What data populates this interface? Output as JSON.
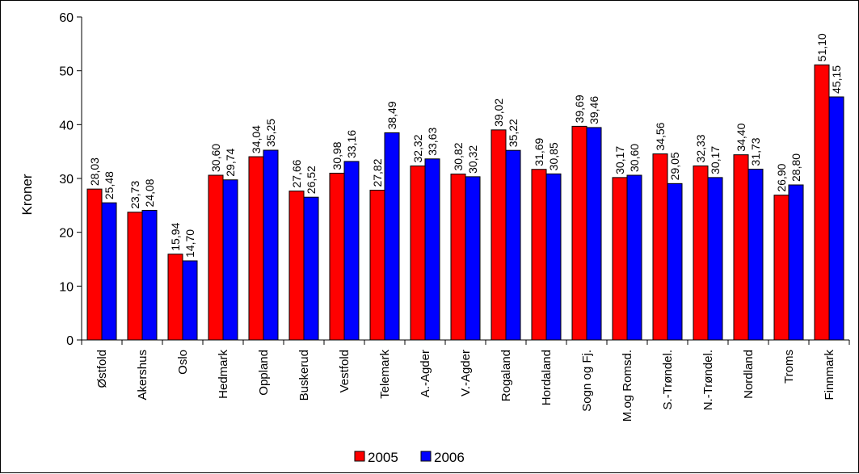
{
  "chart_data": {
    "type": "bar",
    "ylabel": "Kroner",
    "ylim": [
      0,
      60
    ],
    "yticks": [
      "0",
      "10",
      "20",
      "30",
      "40",
      "50",
      "60"
    ],
    "legend_position": "bottom",
    "categories": [
      "Østfold",
      "Akershus",
      "Oslo",
      "Hedmark",
      "Oppland",
      "Buskerud",
      "Vestfold",
      "Telemark",
      "A.-Agder",
      "V.-Agder",
      "Rogaland",
      "Hordaland",
      "Sogn og Fj.",
      "M.og Romsd.",
      "S.-Trøndel.",
      "N.-Trøndel.",
      "Nordland",
      "Troms",
      "Finnmark"
    ],
    "series": [
      {
        "name": "2005",
        "color": "#ff0000",
        "values": [
          28.03,
          23.73,
          15.94,
          30.6,
          34.04,
          27.66,
          30.98,
          27.82,
          32.32,
          30.82,
          39.02,
          31.69,
          39.69,
          30.17,
          34.56,
          32.33,
          34.4,
          26.9,
          51.1
        ],
        "labels": [
          "28,03",
          "23,73",
          "15,94",
          "30,60",
          "34,04",
          "27,66",
          "30,98",
          "27,82",
          "32,32",
          "30,82",
          "39,02",
          "31,69",
          "39,69",
          "30,17",
          "34,56",
          "32,33",
          "34,40",
          "26,90",
          "51,10"
        ]
      },
      {
        "name": "2006",
        "color": "#0000ff",
        "values": [
          25.48,
          24.08,
          14.7,
          29.74,
          35.25,
          26.52,
          33.16,
          38.49,
          33.63,
          30.32,
          35.22,
          30.85,
          39.46,
          30.6,
          29.05,
          30.17,
          31.73,
          28.8,
          45.15
        ],
        "labels": [
          "25,48",
          "24,08",
          "14,70",
          "29,74",
          "35,25",
          "26,52",
          "33,16",
          "38,49",
          "33,63",
          "30,32",
          "35,22",
          "30,85",
          "39,46",
          "30,60",
          "29,05",
          "30,17",
          "31,73",
          "28,80",
          "45,15"
        ]
      }
    ]
  }
}
